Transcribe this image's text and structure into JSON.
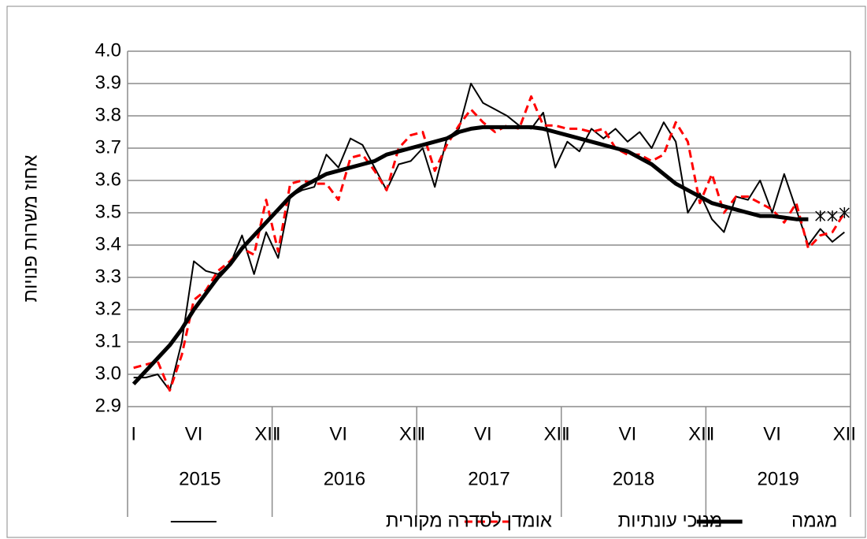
{
  "chart_data": {
    "type": "line",
    "y_label": "אחוז משרות פנויות",
    "categories": [
      "I",
      null,
      null,
      null,
      null,
      "VI",
      null,
      null,
      null,
      null,
      null,
      "XII",
      "I",
      null,
      null,
      null,
      null,
      "VI",
      null,
      null,
      null,
      null,
      null,
      "XII",
      "I",
      null,
      null,
      null,
      null,
      "VI",
      null,
      null,
      null,
      null,
      null,
      "XII",
      "I",
      null,
      null,
      null,
      null,
      "VI",
      null,
      null,
      null,
      null,
      null,
      "XII",
      "I",
      null,
      null,
      null,
      null,
      "VI",
      null,
      null,
      null,
      null,
      null,
      "XII"
    ],
    "groups": [
      "2015",
      "2016",
      "2017",
      "2018",
      "2019"
    ],
    "ylim": [
      2.9,
      4.0
    ],
    "yticks": [
      2.9,
      {
        "value": 3.0,
        "label": "3.0"
      },
      3.1,
      3.2,
      3.3,
      3.4,
      3.5,
      3.6,
      3.7,
      3.8,
      3.9,
      {
        "value": 4.0,
        "label": "4.0"
      }
    ],
    "grid": true,
    "legend": "bottom",
    "series": [
      {
        "name": "אומדן לסדרה מקורית",
        "color": "#000000",
        "width": 2,
        "style": "solid",
        "values": [
          2.99,
          2.99,
          3.0,
          2.95,
          3.1,
          3.35,
          3.32,
          3.31,
          3.34,
          3.43,
          3.31,
          3.44,
          3.36,
          3.55,
          3.57,
          3.58,
          3.68,
          3.64,
          3.73,
          3.71,
          3.64,
          3.57,
          3.65,
          3.66,
          3.7,
          3.58,
          3.73,
          3.76,
          3.9,
          3.84,
          3.82,
          3.8,
          3.77,
          3.76,
          3.81,
          3.64,
          3.72,
          3.69,
          3.76,
          3.73,
          3.76,
          3.72,
          3.75,
          3.7,
          3.78,
          3.72,
          3.5,
          3.56,
          3.48,
          3.44,
          3.55,
          3.54,
          3.6,
          3.5,
          3.62,
          3.51,
          3.4,
          3.45,
          3.41,
          3.44
        ]
      },
      {
        "name": "מנוכי עונתיות",
        "color": "#ff0000",
        "width": 3,
        "style": "dashed",
        "values": [
          3.02,
          3.03,
          3.04,
          2.95,
          3.06,
          3.23,
          3.26,
          3.32,
          3.35,
          3.39,
          3.37,
          3.54,
          3.38,
          3.59,
          3.6,
          3.59,
          3.59,
          3.54,
          3.67,
          3.68,
          3.63,
          3.57,
          3.7,
          3.74,
          3.75,
          3.63,
          3.71,
          3.77,
          3.82,
          3.78,
          3.75,
          3.77,
          3.76,
          3.86,
          3.77,
          3.77,
          3.76,
          3.76,
          3.75,
          3.76,
          3.7,
          3.68,
          3.68,
          3.66,
          3.68,
          3.78,
          3.72,
          3.53,
          3.62,
          3.5,
          3.55,
          3.55,
          3.53,
          3.51,
          3.47,
          3.53,
          3.39,
          3.43,
          3.44,
          3.5
        ]
      },
      {
        "name": "מגמה",
        "color": "#000000",
        "width": 5,
        "style": "solid",
        "values": [
          2.97,
          3.01,
          3.05,
          3.09,
          3.14,
          3.2,
          3.25,
          3.3,
          3.34,
          3.39,
          3.43,
          3.47,
          3.51,
          3.55,
          3.58,
          3.6,
          3.62,
          3.63,
          3.64,
          3.65,
          3.66,
          3.68,
          3.69,
          3.7,
          3.71,
          3.72,
          3.73,
          3.75,
          3.76,
          3.765,
          3.765,
          3.765,
          3.765,
          3.765,
          3.76,
          3.75,
          3.74,
          3.73,
          3.72,
          3.71,
          3.7,
          3.69,
          3.67,
          3.65,
          3.62,
          3.59,
          3.57,
          3.55,
          3.53,
          3.52,
          3.51,
          3.5,
          3.49,
          3.49,
          3.485,
          3.48,
          3.48,
          null,
          null,
          null
        ]
      },
      {
        "color": "#000000",
        "width": 1.5,
        "style": "asterisk",
        "values": [
          null,
          null,
          null,
          null,
          null,
          null,
          null,
          null,
          null,
          null,
          null,
          null,
          null,
          null,
          null,
          null,
          null,
          null,
          null,
          null,
          null,
          null,
          null,
          null,
          null,
          null,
          null,
          null,
          null,
          null,
          null,
          null,
          null,
          null,
          null,
          null,
          null,
          null,
          null,
          null,
          null,
          null,
          null,
          null,
          null,
          null,
          null,
          null,
          null,
          null,
          null,
          null,
          null,
          null,
          null,
          null,
          null,
          3.49,
          3.49,
          3.5
        ]
      }
    ]
  }
}
